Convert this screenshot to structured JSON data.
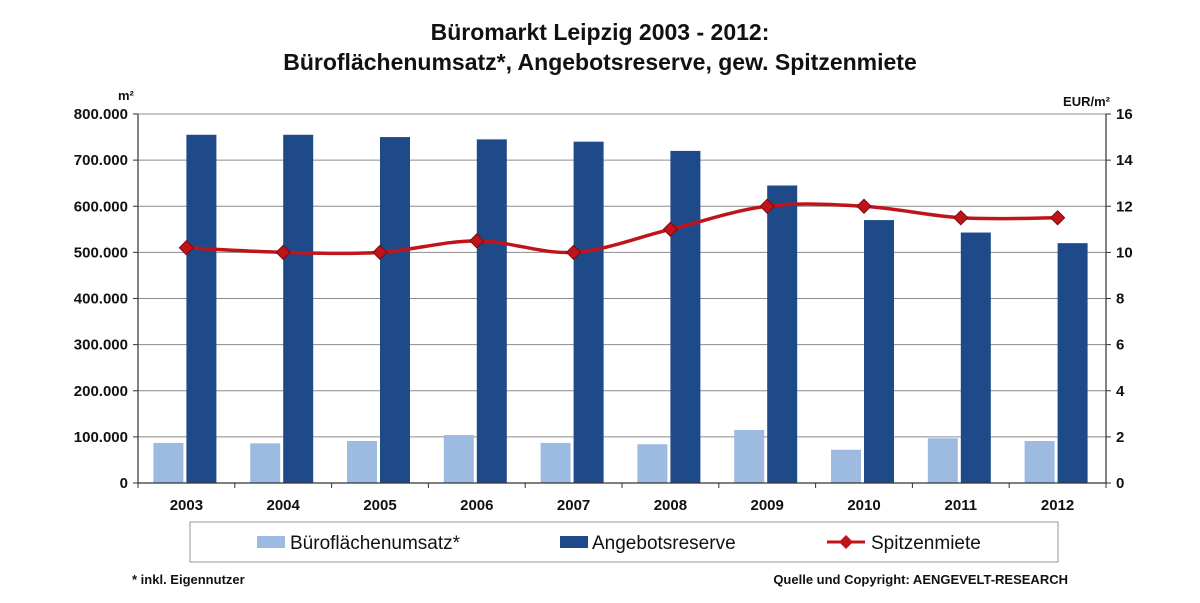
{
  "chart_data": {
    "type": "bar",
    "title_line1": "Büromarkt Leipzig 2003 - 2012:",
    "title_line2": "Büroflächenumsatz*, Angebotsreserve, gew. Spitzenmiete",
    "y_left_unit": "m²",
    "y_right_unit": "EUR/m²",
    "categories": [
      "2003",
      "2004",
      "2005",
      "2006",
      "2007",
      "2008",
      "2009",
      "2010",
      "2011",
      "2012"
    ],
    "y_left_ticks": [
      "0",
      "100.000",
      "200.000",
      "300.000",
      "400.000",
      "500.000",
      "600.000",
      "700.000",
      "800.000"
    ],
    "y_right_ticks": [
      "0",
      "2",
      "4",
      "6",
      "8",
      "10",
      "12",
      "14",
      "16"
    ],
    "ylim_left": [
      0,
      800000
    ],
    "ylim_right": [
      0,
      16
    ],
    "grid": true,
    "legend_position": "bottom",
    "series": [
      {
        "name": "Büroflächenumsatz*",
        "kind": "bar",
        "axis": "left",
        "color": "#9dbbe0",
        "values": [
          87000,
          86000,
          91000,
          104000,
          87000,
          84000,
          115000,
          72000,
          97000,
          91000
        ]
      },
      {
        "name": "Angebotsreserve",
        "kind": "bar",
        "axis": "left",
        "color": "#1f4a8a",
        "values": [
          755000,
          755000,
          750000,
          745000,
          740000,
          720000,
          645000,
          570000,
          543000,
          520000
        ]
      },
      {
        "name": "Spitzenmiete",
        "kind": "line",
        "axis": "right",
        "color": "#c0141b",
        "values": [
          10.2,
          10.0,
          10.0,
          10.5,
          10.0,
          11.0,
          12.0,
          12.0,
          11.5,
          11.5
        ]
      }
    ],
    "footnote": "* inkl. Eigennutzer",
    "source": "Quelle und Copyright: AENGEVELT-RESEARCH"
  }
}
